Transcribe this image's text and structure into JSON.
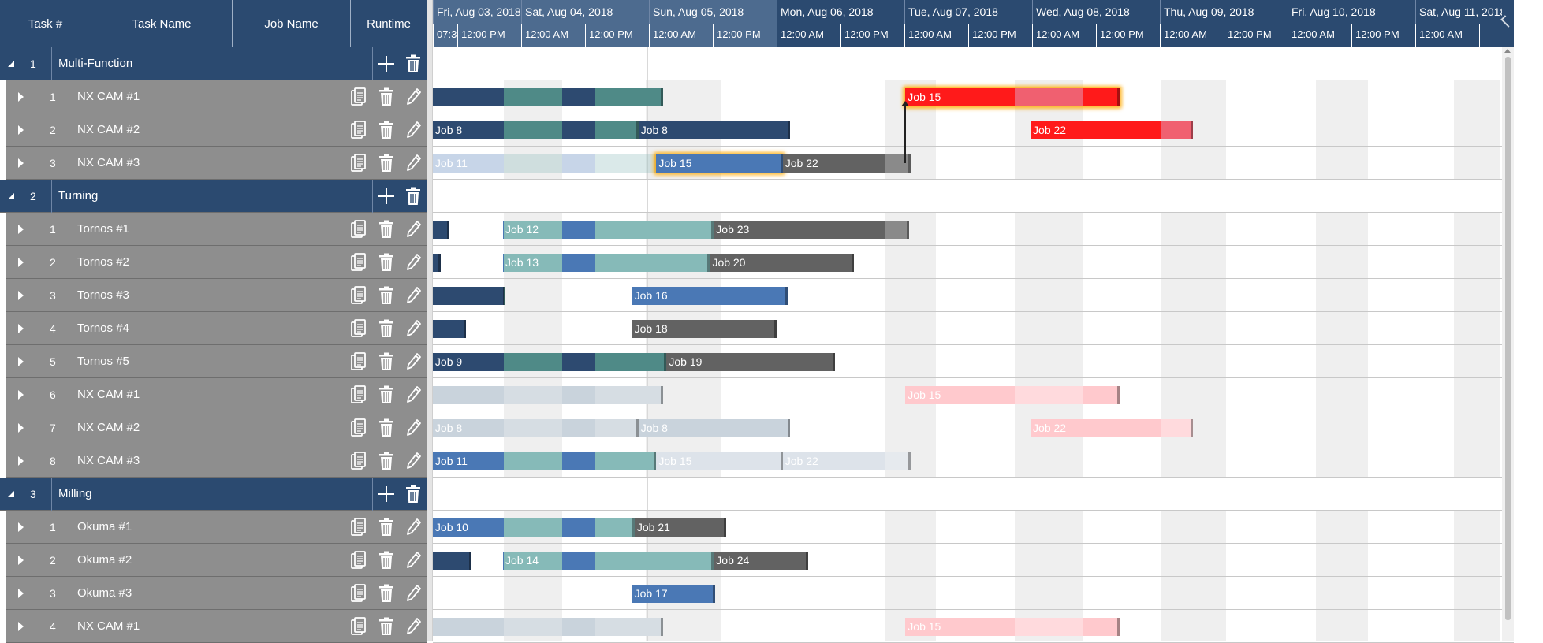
{
  "colors": {
    "header_bg": "#2b4a70",
    "group_row_bg": "#2b4a70",
    "task_row_bg": "#8e8e8e",
    "navy": "#2d4a70",
    "teal": "#4f8a87",
    "blue": "#4a78b5",
    "light_teal": "#86bab8",
    "dark_gray": "#626262",
    "mid_gray": "#8a8a8a",
    "red": "#ff1a1a",
    "light_red": "#f06070",
    "highlight": "#ffaa00"
  },
  "grid": {
    "columns": [
      "Task #",
      "Task Name",
      "Job Name",
      "Runtime"
    ],
    "rows": [
      {
        "kind": "group",
        "num": "1",
        "name": "Multi-Function"
      },
      {
        "kind": "task",
        "num": "1",
        "name": "NX CAM #1"
      },
      {
        "kind": "task",
        "num": "2",
        "name": "NX CAM #2"
      },
      {
        "kind": "task",
        "num": "3",
        "name": "NX CAM #3"
      },
      {
        "kind": "group",
        "num": "2",
        "name": "Turning"
      },
      {
        "kind": "task",
        "num": "1",
        "name": "Tornos #1"
      },
      {
        "kind": "task",
        "num": "2",
        "name": "Tornos #2"
      },
      {
        "kind": "task",
        "num": "3",
        "name": "Tornos #3"
      },
      {
        "kind": "task",
        "num": "4",
        "name": "Tornos #4"
      },
      {
        "kind": "task",
        "num": "5",
        "name": "Tornos #5"
      },
      {
        "kind": "task",
        "num": "6",
        "name": "NX CAM #1"
      },
      {
        "kind": "task",
        "num": "7",
        "name": "NX CAM #2"
      },
      {
        "kind": "task",
        "num": "8",
        "name": "NX CAM #3"
      },
      {
        "kind": "group",
        "num": "3",
        "name": "Milling"
      },
      {
        "kind": "task",
        "num": "1",
        "name": "Okuma #1"
      },
      {
        "kind": "task",
        "num": "2",
        "name": "Okuma #2"
      },
      {
        "kind": "task",
        "num": "3",
        "name": "Okuma #3"
      },
      {
        "kind": "task",
        "num": "4",
        "name": "NX CAM #1"
      }
    ]
  },
  "timeline": {
    "days": [
      {
        "label": "Fri, Aug 03, 2018",
        "hl": true
      },
      {
        "label": "Sat, Aug 04, 2018",
        "hl": true
      },
      {
        "label": "Sun, Aug 05, 2018",
        "hl": true
      },
      {
        "label": "Mon, Aug 06, 2018",
        "hl": false
      },
      {
        "label": "Tue, Aug 07, 2018",
        "hl": false
      },
      {
        "label": "Wed, Aug 08, 2018",
        "hl": false
      },
      {
        "label": "Thu, Aug 09, 2018",
        "hl": false
      },
      {
        "label": "Fri, Aug 10, 2018",
        "hl": false
      },
      {
        "label": "Sat, Aug 11, 2018",
        "hl": false
      }
    ],
    "hours": [
      {
        "label": "07:3",
        "hl": true
      },
      {
        "label": "12:00 PM",
        "hl": true
      },
      {
        "label": "12:00 AM",
        "hl": true
      },
      {
        "label": "12:00 PM",
        "hl": true
      },
      {
        "label": "12:00 AM",
        "hl": true
      },
      {
        "label": "12:00 PM",
        "hl": true
      },
      {
        "label": "12:00 AM",
        "hl": false
      },
      {
        "label": "12:00 PM",
        "hl": false
      },
      {
        "label": "12:00 AM",
        "hl": false
      },
      {
        "label": "12:00 PM",
        "hl": false
      },
      {
        "label": "12:00 AM",
        "hl": false
      },
      {
        "label": "12:00 PM",
        "hl": false
      },
      {
        "label": "12:00 AM",
        "hl": false
      },
      {
        "label": "12:00 PM",
        "hl": false
      },
      {
        "label": "12:00 AM",
        "hl": false
      },
      {
        "label": "12:00 PM",
        "hl": false
      },
      {
        "label": "12:00 AM",
        "hl": false
      },
      {
        "label": "",
        "hl": false
      }
    ]
  },
  "jobs": [
    {
      "row": 1,
      "label": "",
      "start": -0.5,
      "end": 17.5,
      "scheme": "navy"
    },
    {
      "row": 1,
      "label": "Job 15",
      "start": 36.5,
      "end": 53.3,
      "scheme": "red",
      "glow": true
    },
    {
      "row": 2,
      "label": "Job 8",
      "start": -0.5,
      "end": 15.6,
      "scheme": "navy"
    },
    {
      "row": 2,
      "label": "Job 8",
      "start": 15.6,
      "end": 27.5,
      "scheme": "navy"
    },
    {
      "row": 2,
      "label": "Job 22",
      "start": 46.3,
      "end": 59,
      "scheme": "red"
    },
    {
      "row": 3,
      "label": "Job 11",
      "start": -0.5,
      "end": 17,
      "scheme": "blue",
      "faded": true
    },
    {
      "row": 3,
      "label": "Job 15",
      "start": 17,
      "end": 26.9,
      "scheme": "blue",
      "glow": true
    },
    {
      "row": 3,
      "label": "Job 22",
      "start": 26.9,
      "end": 36.9,
      "scheme": "gray"
    },
    {
      "row": 5,
      "label": "",
      "start": -0.5,
      "end": 0.8,
      "scheme": "navy"
    },
    {
      "row": 5,
      "label": "Job 12",
      "start": 5,
      "end": 21.5,
      "scheme": "blue"
    },
    {
      "row": 5,
      "label": "Job 23",
      "start": 21.5,
      "end": 36.8,
      "scheme": "gray"
    },
    {
      "row": 6,
      "label": "",
      "start": -0.5,
      "end": 0.1,
      "scheme": "navy"
    },
    {
      "row": 6,
      "label": "Job 13",
      "start": 5,
      "end": 21.2,
      "scheme": "blue"
    },
    {
      "row": 6,
      "label": "Job 20",
      "start": 21.2,
      "end": 32.5,
      "scheme": "gray"
    },
    {
      "row": 7,
      "label": "",
      "start": -0.5,
      "end": 5.2,
      "scheme": "navy"
    },
    {
      "row": 7,
      "label": "Job 16",
      "start": 15.1,
      "end": 27.3,
      "scheme": "blue"
    },
    {
      "row": 8,
      "label": "",
      "start": -0.5,
      "end": 2.1,
      "scheme": "navy"
    },
    {
      "row": 8,
      "label": "Job 18",
      "start": 15.1,
      "end": 26.4,
      "scheme": "gray"
    },
    {
      "row": 9,
      "label": "Job 9",
      "start": -0.5,
      "end": 17.8,
      "scheme": "navy"
    },
    {
      "row": 9,
      "label": "Job 19",
      "start": 17.8,
      "end": 31,
      "scheme": "gray"
    },
    {
      "row": 10,
      "label": "",
      "start": -0.5,
      "end": 17.5,
      "scheme": "lightgray"
    },
    {
      "row": 10,
      "label": "Job 15",
      "start": 36.5,
      "end": 53.3,
      "scheme": "pink"
    },
    {
      "row": 11,
      "label": "Job 8",
      "start": -0.5,
      "end": 15.6,
      "scheme": "lightgray"
    },
    {
      "row": 11,
      "label": "Job 8",
      "start": 15.6,
      "end": 27.5,
      "scheme": "lightgray"
    },
    {
      "row": 11,
      "label": "Job 22",
      "start": 46.3,
      "end": 59,
      "scheme": "pink"
    },
    {
      "row": 12,
      "label": "Job 11",
      "start": -0.5,
      "end": 17,
      "scheme": "blue"
    },
    {
      "row": 12,
      "label": "Job 15",
      "start": 17,
      "end": 26.9,
      "scheme": "lightgray2"
    },
    {
      "row": 12,
      "label": "Job 22",
      "start": 26.9,
      "end": 36.9,
      "scheme": "lightgray2"
    },
    {
      "row": 14,
      "label": "Job 10",
      "start": -0.5,
      "end": 15.3,
      "scheme": "blue"
    },
    {
      "row": 14,
      "label": "Job 21",
      "start": 15.3,
      "end": 22.5,
      "scheme": "gray"
    },
    {
      "row": 15,
      "label": "",
      "start": -0.5,
      "end": 2.5,
      "scheme": "navy"
    },
    {
      "row": 15,
      "label": "Job 14",
      "start": 5,
      "end": 21.5,
      "scheme": "blue"
    },
    {
      "row": 15,
      "label": "Job 24",
      "start": 21.5,
      "end": 28.9,
      "scheme": "gray"
    },
    {
      "row": 16,
      "label": "Job 17",
      "start": 15.1,
      "end": 21.6,
      "scheme": "blue"
    },
    {
      "row": 17,
      "label": "",
      "start": -0.5,
      "end": 17.5,
      "scheme": "lightgray"
    },
    {
      "row": 17,
      "label": "Job 15",
      "start": 36.5,
      "end": 53.3,
      "scheme": "pink"
    }
  ]
}
